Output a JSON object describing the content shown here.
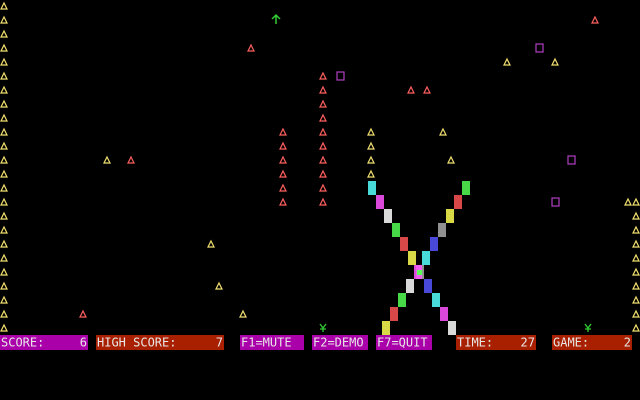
{
  "status_bar": {
    "score": {
      "label": "SCORE:",
      "value": 6
    },
    "high_score": {
      "label": "HIGH SCORE:",
      "value": 7
    },
    "keys": [
      "F1=MUTE",
      "F2=DEMO",
      "F7=QUIT"
    ],
    "time": {
      "label": "TIME:",
      "value": 27
    },
    "game": {
      "label": "GAME:",
      "value": 2
    }
  }
}
